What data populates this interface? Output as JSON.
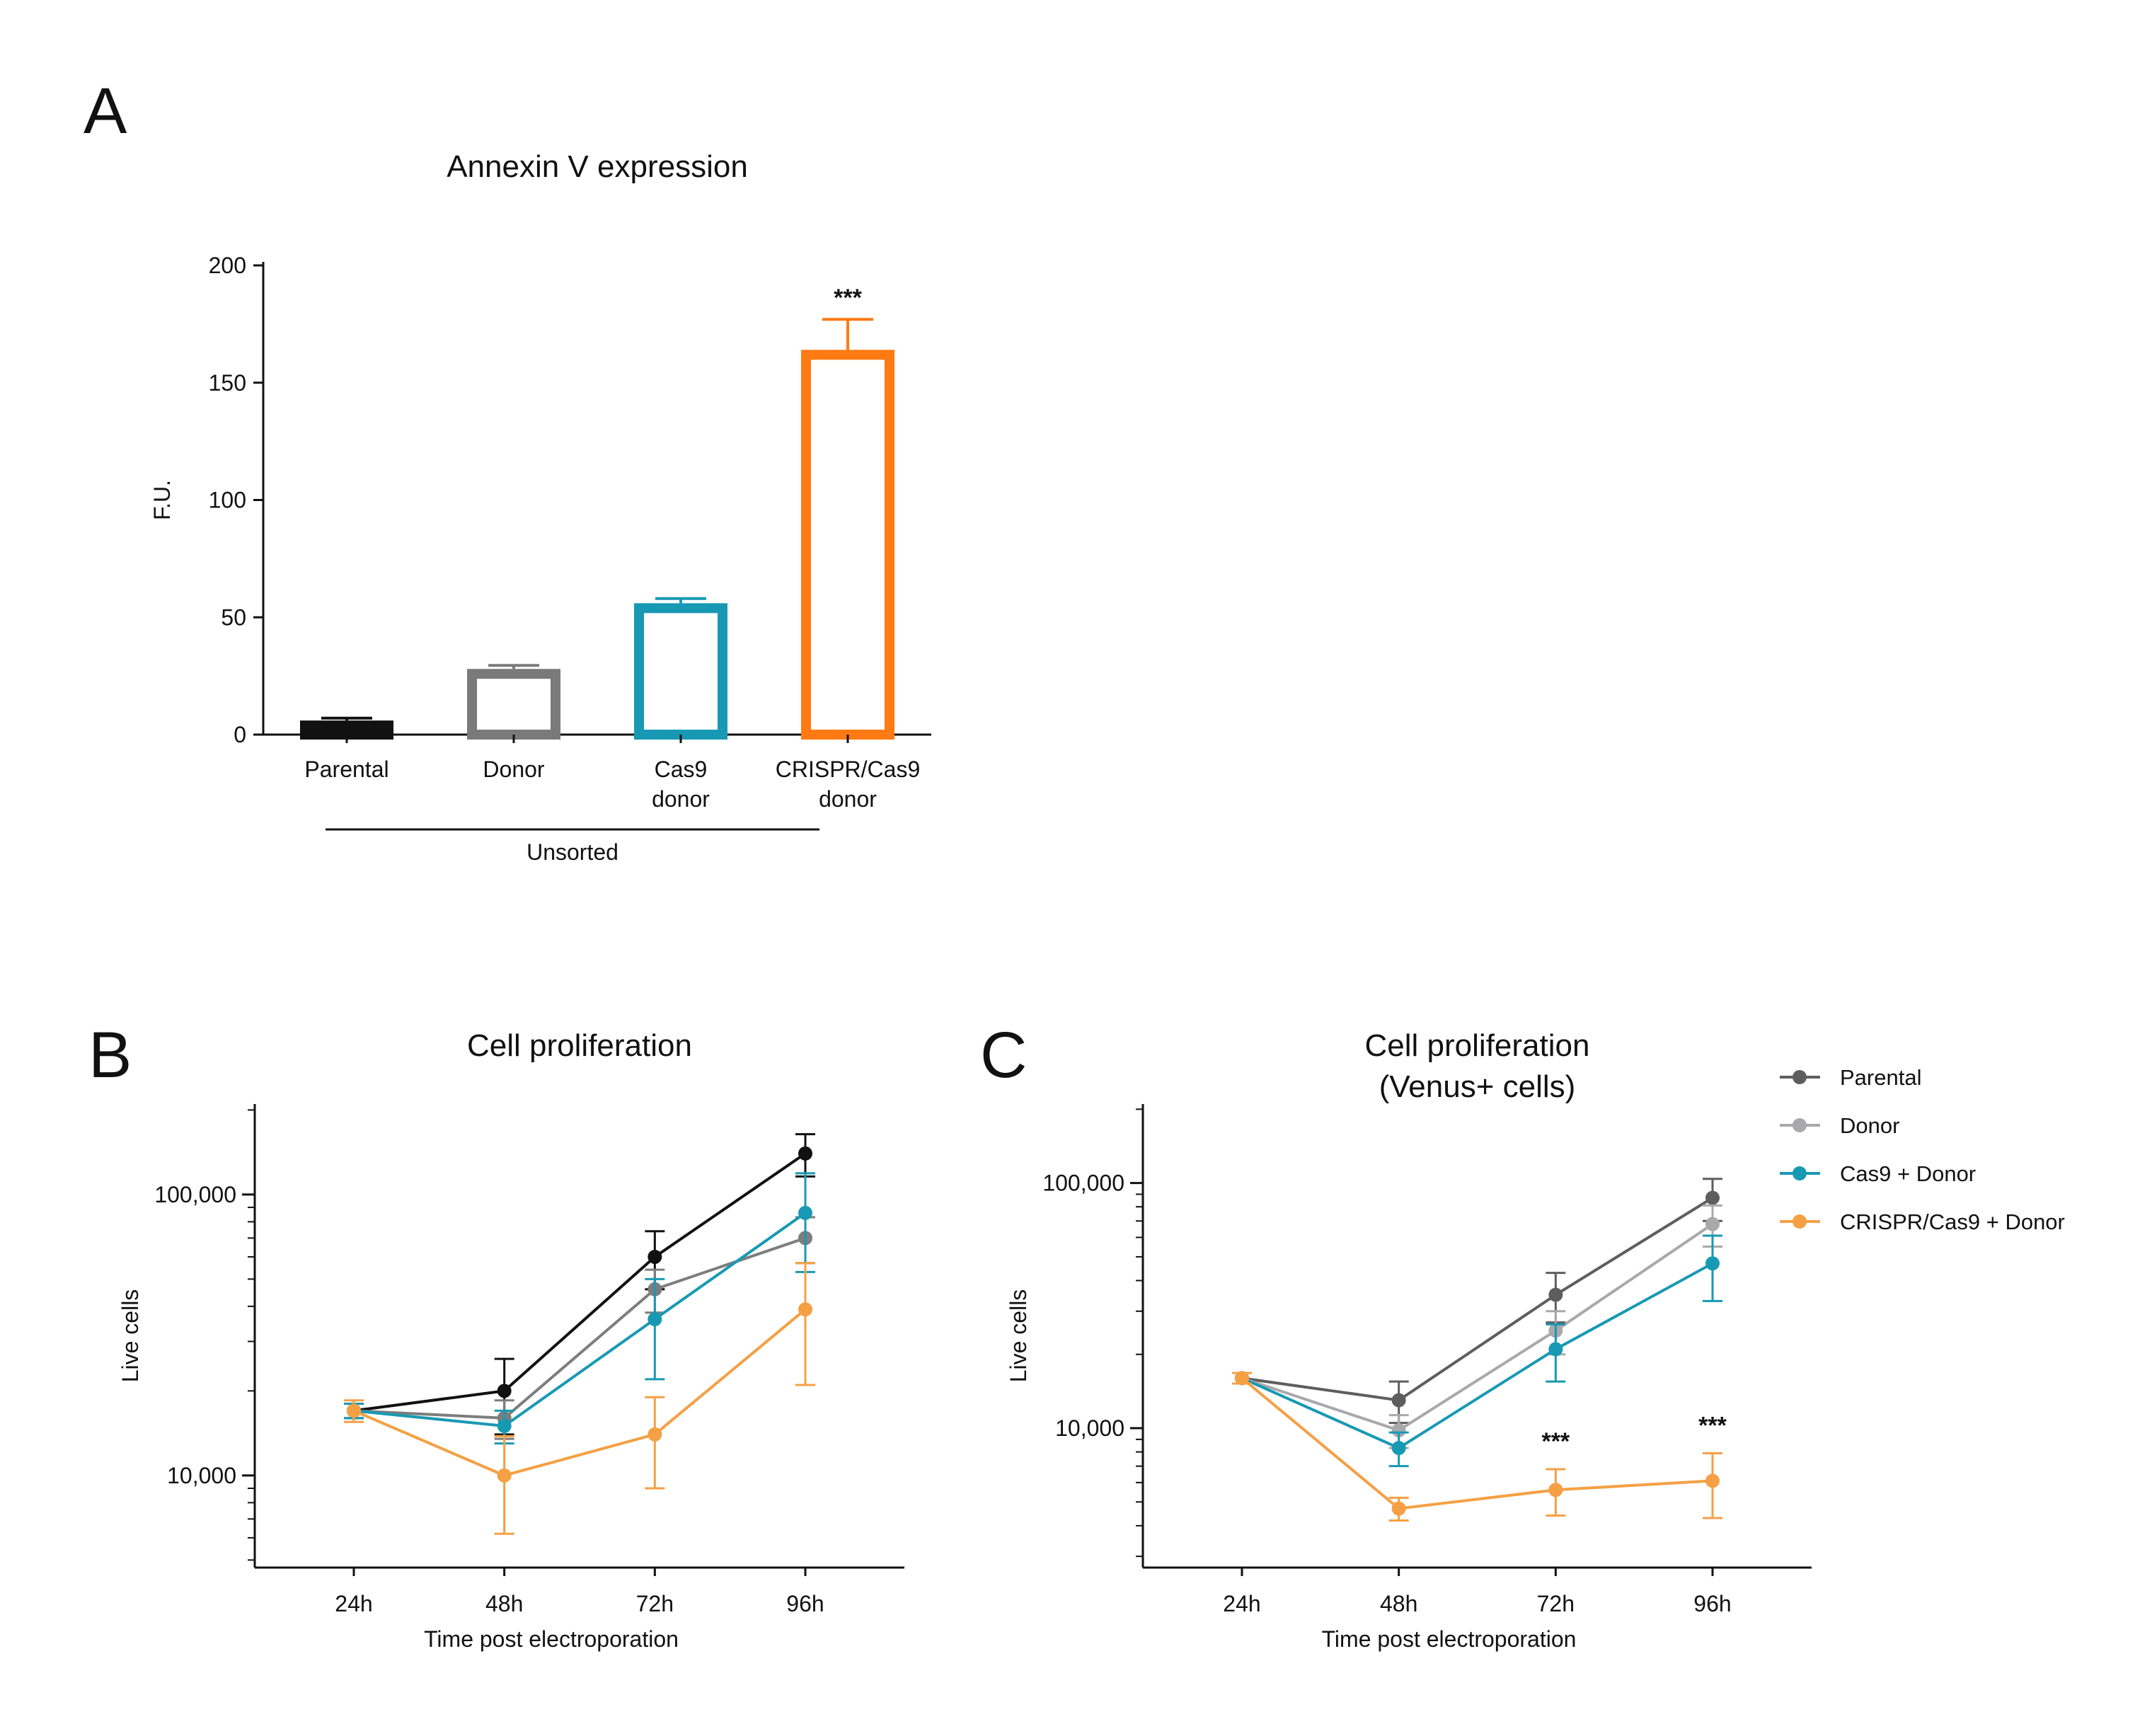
{
  "panels": {
    "a": "A",
    "b": "B",
    "c": "C"
  },
  "significance": "***",
  "legend": [
    {
      "name": "Parental",
      "color": "#5e5e5e"
    },
    {
      "name": "Donor",
      "color": "#a9a9ad"
    },
    {
      "name": "Cas9 + Donor",
      "color": "#1899b3"
    },
    {
      "name": "CRISPR/Cas9 + Donor",
      "color": "#f5a044"
    }
  ],
  "chart_data": [
    {
      "id": "A",
      "type": "bar",
      "title": "Annexin V expression",
      "ylabel": "F.U.",
      "xlabel": "",
      "ylim": [
        0,
        200
      ],
      "yticks": [
        0,
        50,
        100,
        150,
        200
      ],
      "categories": [
        [
          "Parental"
        ],
        [
          "Donor"
        ],
        [
          "Cas9",
          "donor"
        ],
        [
          "CRISPR/Cas9",
          "donor"
        ]
      ],
      "values": [
        6,
        28,
        56,
        164
      ],
      "errors": [
        1,
        1.5,
        2,
        13
      ],
      "colors": [
        "#111111",
        "#7a7a7a",
        "#1899b3",
        "#ff7a12"
      ],
      "group_label": "Unsorted",
      "annotations": [
        {
          "category_index": 3,
          "text": "***"
        }
      ],
      "grid": false
    },
    {
      "id": "B",
      "type": "line",
      "title": "Cell proliferation",
      "xlabel": "Time post electroporation",
      "ylabel": "Live cells",
      "yscale": "log",
      "ylim": [
        4700,
        210000
      ],
      "yticks": [
        10000,
        100000
      ],
      "ytick_labels": [
        "10,000",
        "100,000"
      ],
      "x": [
        "24h",
        "48h",
        "72h",
        "96h"
      ],
      "series": [
        {
          "name": "Parental",
          "color": "#111111",
          "values": [
            17000,
            20000,
            60000,
            140000
          ],
          "errors": [
            1000,
            6000,
            14000,
            24000
          ]
        },
        {
          "name": "Donor",
          "color": "#7d7d7d",
          "values": [
            17000,
            16000,
            46000,
            70000
          ],
          "errors": [
            1000,
            2500,
            8000,
            13000
          ]
        },
        {
          "name": "Cas9 + Donor",
          "color": "#1899b3",
          "values": [
            17000,
            15000,
            36000,
            86000
          ],
          "errors": [
            1000,
            2000,
            14000,
            33000
          ]
        },
        {
          "name": "CRISPR/Cas9 + Donor",
          "color": "#f5a044",
          "values": [
            17000,
            10000,
            14000,
            39000
          ],
          "errors": [
            1500,
            3800,
            5000,
            18000
          ]
        }
      ],
      "grid": false
    },
    {
      "id": "C",
      "type": "line",
      "title": "Cell proliferation",
      "subtitle": "(Venus+ cells)",
      "xlabel": "Time post electroporation",
      "ylabel": "Live cells",
      "yscale": "log",
      "ylim": [
        2700,
        210000
      ],
      "yticks": [
        10000,
        100000
      ],
      "ytick_labels": [
        "10,000",
        "100,000"
      ],
      "x": [
        "24h",
        "48h",
        "72h",
        "96h"
      ],
      "series": [
        {
          "name": "Parental",
          "color": "#5e5e5e",
          "values": [
            16000,
            13000,
            35000,
            87000
          ],
          "errors": [
            800,
            2500,
            8000,
            17000
          ]
        },
        {
          "name": "Donor",
          "color": "#a9a9ad",
          "values": [
            16000,
            9800,
            25000,
            68000
          ],
          "errors": [
            800,
            1500,
            5000,
            13000
          ]
        },
        {
          "name": "Cas9 + Donor",
          "color": "#1899b3",
          "values": [
            16000,
            8300,
            21000,
            47000
          ],
          "errors": [
            800,
            1300,
            5500,
            14000
          ]
        },
        {
          "name": "CRISPR/Cas9 + Donor",
          "color": "#f5a044",
          "values": [
            16000,
            4700,
            5600,
            6100
          ],
          "errors": [
            800,
            500,
            1200,
            1800
          ]
        }
      ],
      "annotations": [
        {
          "x_index": 2,
          "text": "***"
        },
        {
          "x_index": 3,
          "text": "***"
        }
      ],
      "legend_position": "top-right",
      "grid": false
    }
  ]
}
